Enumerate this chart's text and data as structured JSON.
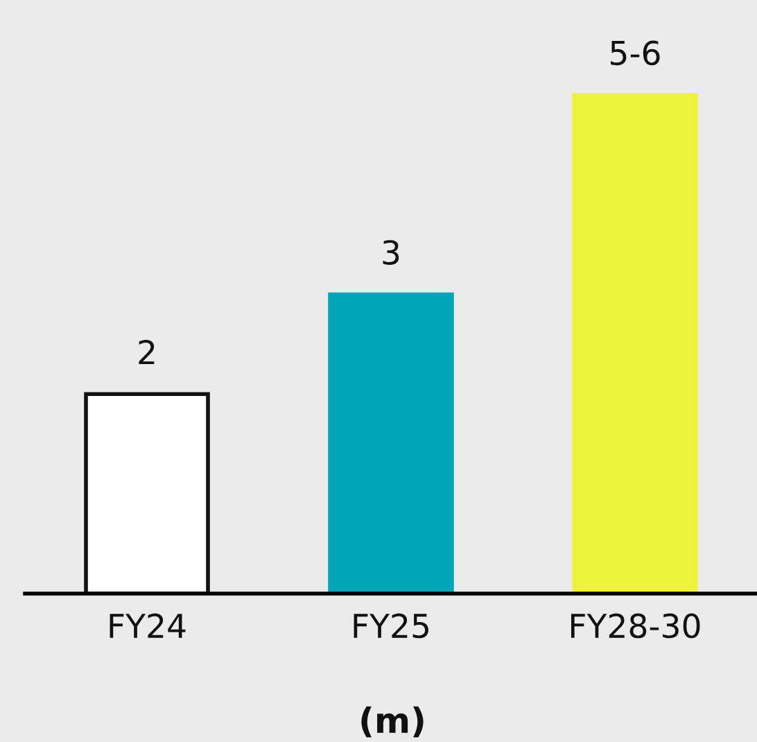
{
  "chart_data": {
    "type": "bar",
    "xlabel": "(m)",
    "categories": [
      "FY24",
      "FY25",
      "FY28-30"
    ],
    "values": [
      2,
      3,
      5
    ],
    "colors": [
      "#ffffff",
      "#00a6b8",
      "#eef23a"
    ],
    "value_labels": [
      "2",
      "3",
      "5-6"
    ],
    "grid": false,
    "legend": false
  }
}
